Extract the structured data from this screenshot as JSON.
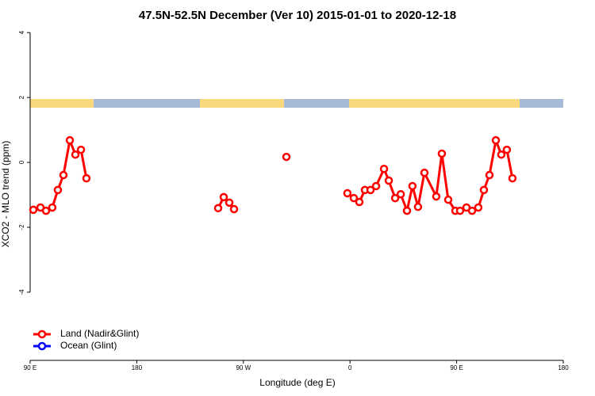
{
  "chart_data": {
    "type": "line",
    "title": "47.5N-52.5N December (Ver 10)   2015-01-01 to 2020-12-18",
    "x_label": "Longitude (deg E)",
    "y_label": "XCO2 - MLO trend (ppm)",
    "xlim": [
      90,
      540
    ],
    "xticks": [
      {
        "value": 90,
        "label": "90 E"
      },
      180,
      {
        "value": 270,
        "label": "90 W"
      },
      {
        "value": 360,
        "label": "0"
      },
      {
        "value": 450,
        "label": "90 E"
      },
      {
        "value": 540,
        "label": "180"
      }
    ],
    "ylim": [
      -6.1,
      4.15
    ],
    "yticks": [
      -4,
      -2,
      0,
      2,
      4
    ],
    "legend": "bottom-left",
    "x": [
      92.7,
      98.7,
      103.4,
      108.7,
      113.4,
      118.1,
      123.5,
      128.2,
      132.9,
      137.5,
      null,
      248.7,
      253.4,
      258.1,
      262.1,
      null,
      306.3,
      null,
      357.8,
      363.2,
      367.9,
      372.6,
      377.3,
      382.0,
      388.7,
      392.7,
      398.1,
      402.8,
      408.1,
      412.7,
      417.4,
      422.8,
      432.8,
      437.5,
      442.9,
      448.9,
      452.9,
      458.3,
      463.0,
      468.3,
      473.0,
      477.7,
      483.1,
      487.7,
      492.4,
      497.1
    ],
    "series": [
      {
        "name": "Land (Nadir&Glint)",
        "color": "#ff0000",
        "values": [
          -1.46,
          -1.39,
          -1.49,
          -1.39,
          -0.85,
          -0.39,
          0.68,
          0.24,
          0.39,
          -0.49,
          null,
          -1.41,
          -1.07,
          -1.24,
          -1.44,
          null,
          0.17,
          null,
          -0.95,
          -1.1,
          -1.22,
          -0.85,
          -0.85,
          -0.73,
          -0.2,
          -0.56,
          -1.1,
          -0.98,
          -1.49,
          -0.73,
          -1.37,
          -0.32,
          -1.05,
          0.27,
          -1.15,
          -1.49,
          -1.49,
          -1.39,
          -1.49,
          -1.39,
          -0.85,
          -0.39,
          0.68,
          0.24,
          0.39,
          -0.49
        ]
      },
      {
        "name": "Ocean (Glint)",
        "color": "#0000ff",
        "values": [
          null,
          null,
          null,
          null,
          null,
          null,
          null,
          null,
          null,
          null,
          null,
          null,
          null,
          null,
          null,
          null,
          null,
          null,
          null,
          null,
          null,
          null,
          null,
          null,
          null,
          null,
          null,
          null,
          null,
          null,
          null,
          null,
          null,
          null,
          null,
          null,
          null,
          null,
          null,
          null,
          null,
          null,
          null,
          null,
          null,
          null
        ]
      }
    ]
  }
}
